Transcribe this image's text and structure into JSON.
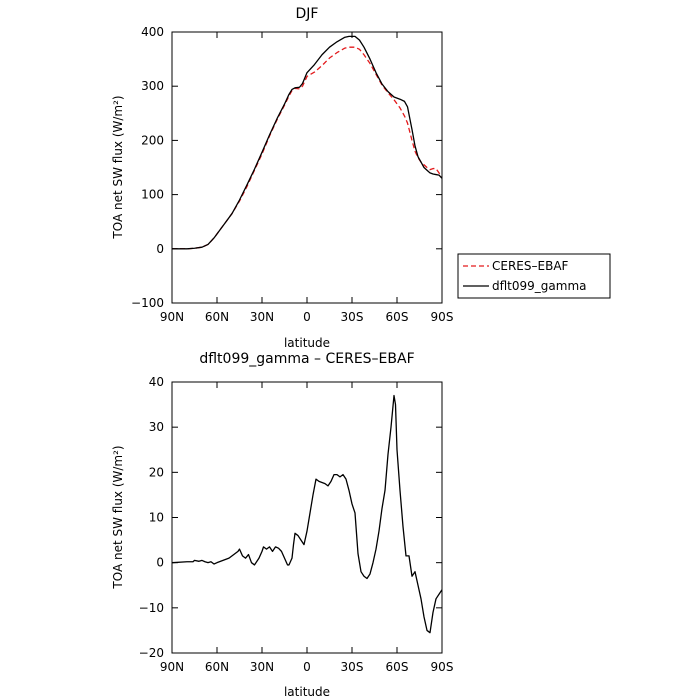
{
  "chart_data": [
    {
      "type": "line",
      "title": "DJF",
      "xlabel": "latitude",
      "ylabel": "TOA net SW flux (W/m²)",
      "xlim": [
        90,
        -90
      ],
      "ylim": [
        -100,
        400
      ],
      "xticks": [
        90,
        60,
        30,
        0,
        -30,
        -60,
        -90
      ],
      "xtick_labels": [
        "90N",
        "60N",
        "30N",
        "0",
        "30S",
        "60S",
        "90S"
      ],
      "yticks": [
        -100,
        0,
        100,
        200,
        300,
        400
      ],
      "ytick_labels": [
        "−100",
        "0",
        "100",
        "200",
        "300",
        "400"
      ],
      "legend": {
        "placement": "right"
      },
      "series": [
        {
          "name": "CERES–EBAF",
          "color": "#e31a1c",
          "dash": "dashed",
          "points": [
            [
              90,
              0
            ],
            [
              80,
              0
            ],
            [
              75,
              1
            ],
            [
              70,
              3
            ],
            [
              66,
              8
            ],
            [
              62,
              20
            ],
            [
              58,
              35
            ],
            [
              54,
              50
            ],
            [
              50,
              65
            ],
            [
              45,
              88
            ],
            [
              40,
              115
            ],
            [
              35,
              145
            ],
            [
              30,
              175
            ],
            [
              25,
              208
            ],
            [
              20,
              238
            ],
            [
              15,
              265
            ],
            [
              12,
              282
            ],
            [
              10,
              292
            ],
            [
              8,
              296
            ],
            [
              5,
              295
            ],
            [
              3,
              300
            ],
            [
              0,
              318
            ],
            [
              -5,
              326
            ],
            [
              -10,
              338
            ],
            [
              -15,
              352
            ],
            [
              -20,
              362
            ],
            [
              -25,
              370
            ],
            [
              -28,
              372
            ],
            [
              -32,
              372
            ],
            [
              -35,
              368
            ],
            [
              -38,
              358
            ],
            [
              -42,
              342
            ],
            [
              -46,
              322
            ],
            [
              -50,
              302
            ],
            [
              -54,
              288
            ],
            [
              -58,
              275
            ],
            [
              -62,
              260
            ],
            [
              -65,
              245
            ],
            [
              -67,
              232
            ],
            [
              -70,
              200
            ],
            [
              -72,
              180
            ],
            [
              -74,
              168
            ],
            [
              -76,
              160
            ],
            [
              -78,
              155
            ],
            [
              -80,
              150
            ],
            [
              -82,
              146
            ],
            [
              -84,
              148
            ],
            [
              -86,
              148
            ],
            [
              -88,
              140
            ],
            [
              -90,
              132
            ]
          ]
        },
        {
          "name": "dflt099_gamma",
          "color": "#000000",
          "dash": "solid",
          "points": [
            [
              90,
              0
            ],
            [
              80,
              0
            ],
            [
              75,
              1
            ],
            [
              70,
              3
            ],
            [
              66,
              8
            ],
            [
              62,
              20
            ],
            [
              58,
              35
            ],
            [
              54,
              50
            ],
            [
              50,
              65
            ],
            [
              45,
              90
            ],
            [
              40,
              118
            ],
            [
              35,
              147
            ],
            [
              30,
              178
            ],
            [
              25,
              210
            ],
            [
              20,
              240
            ],
            [
              15,
              267
            ],
            [
              12,
              285
            ],
            [
              10,
              294
            ],
            [
              8,
              297
            ],
            [
              5,
              298
            ],
            [
              3,
              305
            ],
            [
              0,
              325
            ],
            [
              -5,
              340
            ],
            [
              -10,
              358
            ],
            [
              -15,
              372
            ],
            [
              -20,
              382
            ],
            [
              -25,
              390
            ],
            [
              -28,
              392
            ],
            [
              -32,
              392
            ],
            [
              -35,
              385
            ],
            [
              -38,
              372
            ],
            [
              -42,
              350
            ],
            [
              -46,
              325
            ],
            [
              -50,
              304
            ],
            [
              -54,
              290
            ],
            [
              -58,
              280
            ],
            [
              -62,
              276
            ],
            [
              -65,
              272
            ],
            [
              -67,
              262
            ],
            [
              -70,
              220
            ],
            [
              -72,
              190
            ],
            [
              -74,
              170
            ],
            [
              -76,
              160
            ],
            [
              -78,
              150
            ],
            [
              -80,
              145
            ],
            [
              -82,
              140
            ],
            [
              -84,
              138
            ],
            [
              -86,
              137
            ],
            [
              -88,
              136
            ],
            [
              -90,
              130
            ]
          ]
        }
      ]
    },
    {
      "type": "line",
      "title": "dflt099_gamma – CERES–EBAF",
      "xlabel": "latitude",
      "ylabel": "TOA net SW flux (W/m²)",
      "xlim": [
        90,
        -90
      ],
      "ylim": [
        -20,
        40
      ],
      "xticks": [
        90,
        60,
        30,
        0,
        -30,
        -60,
        -90
      ],
      "xtick_labels": [
        "90N",
        "60N",
        "30N",
        "0",
        "30S",
        "60S",
        "90S"
      ],
      "yticks": [
        -20,
        -10,
        0,
        10,
        20,
        30,
        40
      ],
      "ytick_labels": [
        "−20",
        "−10",
        "0",
        "10",
        "20",
        "30",
        "40"
      ],
      "series": [
        {
          "color": "#000000",
          "dash": "solid",
          "points": [
            [
              90,
              0
            ],
            [
              80,
              0.2
            ],
            [
              76,
              0.2
            ],
            [
              75,
              0.5
            ],
            [
              72,
              0.3
            ],
            [
              70,
              0.5
            ],
            [
              68,
              0.2
            ],
            [
              66,
              0
            ],
            [
              64,
              0.2
            ],
            [
              62,
              -0.3
            ],
            [
              60,
              0
            ],
            [
              56,
              0.5
            ],
            [
              52,
              1
            ],
            [
              48,
              2
            ],
            [
              46,
              2.5
            ],
            [
              45,
              3
            ],
            [
              43,
              1.5
            ],
            [
              41,
              1
            ],
            [
              39,
              1.8
            ],
            [
              37,
              0
            ],
            [
              35,
              -0.5
            ],
            [
              32,
              1
            ],
            [
              30,
              2.5
            ],
            [
              29,
              3.5
            ],
            [
              27,
              3
            ],
            [
              25,
              3.5
            ],
            [
              23,
              2.5
            ],
            [
              21,
              3.5
            ],
            [
              19,
              3.2
            ],
            [
              17,
              2.5
            ],
            [
              15,
              1
            ],
            [
              13,
              -0.5
            ],
            [
              12,
              -0.5
            ],
            [
              10,
              1
            ],
            [
              9,
              4
            ],
            [
              8,
              6.5
            ],
            [
              6,
              6
            ],
            [
              4,
              5
            ],
            [
              2,
              4
            ],
            [
              0,
              7
            ],
            [
              -2,
              11
            ],
            [
              -4,
              15
            ],
            [
              -6,
              18.5
            ],
            [
              -8,
              18
            ],
            [
              -12,
              17.5
            ],
            [
              -14,
              17
            ],
            [
              -16,
              18
            ],
            [
              -18,
              19.5
            ],
            [
              -20,
              19.5
            ],
            [
              -22,
              19
            ],
            [
              -24,
              19.5
            ],
            [
              -26,
              18.5
            ],
            [
              -28,
              16
            ],
            [
              -30,
              13
            ],
            [
              -32,
              11
            ],
            [
              -34,
              2
            ],
            [
              -36,
              -2
            ],
            [
              -38,
              -3
            ],
            [
              -40,
              -3.5
            ],
            [
              -42,
              -2.5
            ],
            [
              -44,
              0
            ],
            [
              -46,
              3
            ],
            [
              -48,
              7
            ],
            [
              -50,
              12
            ],
            [
              -52,
              16
            ],
            [
              -54,
              24
            ],
            [
              -56,
              30
            ],
            [
              -58,
              37
            ],
            [
              -59,
              35
            ],
            [
              -60,
              25
            ],
            [
              -62,
              16
            ],
            [
              -64,
              8
            ],
            [
              -66,
              1.5
            ],
            [
              -68,
              1.5
            ],
            [
              -70,
              -3
            ],
            [
              -72,
              -2
            ],
            [
              -74,
              -5
            ],
            [
              -76,
              -8
            ],
            [
              -78,
              -12
            ],
            [
              -80,
              -15
            ],
            [
              -82,
              -15.5
            ],
            [
              -84,
              -11
            ],
            [
              -86,
              -8
            ],
            [
              -88,
              -7
            ],
            [
              -90,
              -6
            ]
          ]
        }
      ]
    }
  ]
}
